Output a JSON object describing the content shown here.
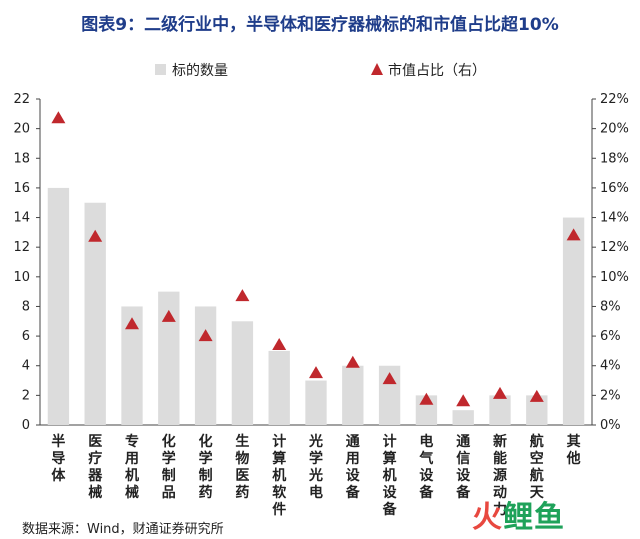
{
  "title": "图表9：二级行业中，半导体和医疗器械标的和市值占比超10%",
  "source": "数据来源：Wind，财通证券研究所",
  "watermark": {
    "text_1": "火",
    "text_2": "鲤鱼",
    "color_1": "#e8483f",
    "color_2": "#1fa25a"
  },
  "chart_data": {
    "type": "bar",
    "categories": [
      "半导体",
      "医疗器械",
      "专用机械",
      "化学制品",
      "化学制药",
      "生物医药",
      "计算机软件",
      "光学光电",
      "通用设备",
      "计算机设备",
      "电气设备",
      "通信设备",
      "新能源动力",
      "航空航天",
      "其他"
    ],
    "series": [
      {
        "name": "标的数量",
        "type": "bar",
        "axis": "left",
        "color": "#dcdcdc",
        "values": [
          16,
          15,
          8,
          9,
          8,
          7,
          5,
          3,
          4,
          4,
          2,
          1,
          2,
          2,
          14
        ]
      },
      {
        "name": "市值占比（右）",
        "type": "scatter",
        "marker": "triangle",
        "axis": "right",
        "color": "#c0282d",
        "values": [
          20.7,
          12.7,
          6.8,
          7.3,
          6.0,
          8.7,
          5.4,
          3.5,
          4.2,
          3.1,
          1.7,
          1.6,
          2.1,
          1.9,
          12.8
        ]
      }
    ],
    "y_left": {
      "min": 0,
      "max": 22,
      "ticks": [
        "0",
        "2",
        "4",
        "6",
        "8",
        "10",
        "12",
        "14",
        "16",
        "18",
        "20",
        "22"
      ]
    },
    "y_right": {
      "min": 0,
      "max": 22,
      "ticks": [
        "0%",
        "2%",
        "4%",
        "6%",
        "8%",
        "10%",
        "12%",
        "14%",
        "16%",
        "18%",
        "20%",
        "22%"
      ]
    },
    "grid": false,
    "legend_position": "top"
  }
}
